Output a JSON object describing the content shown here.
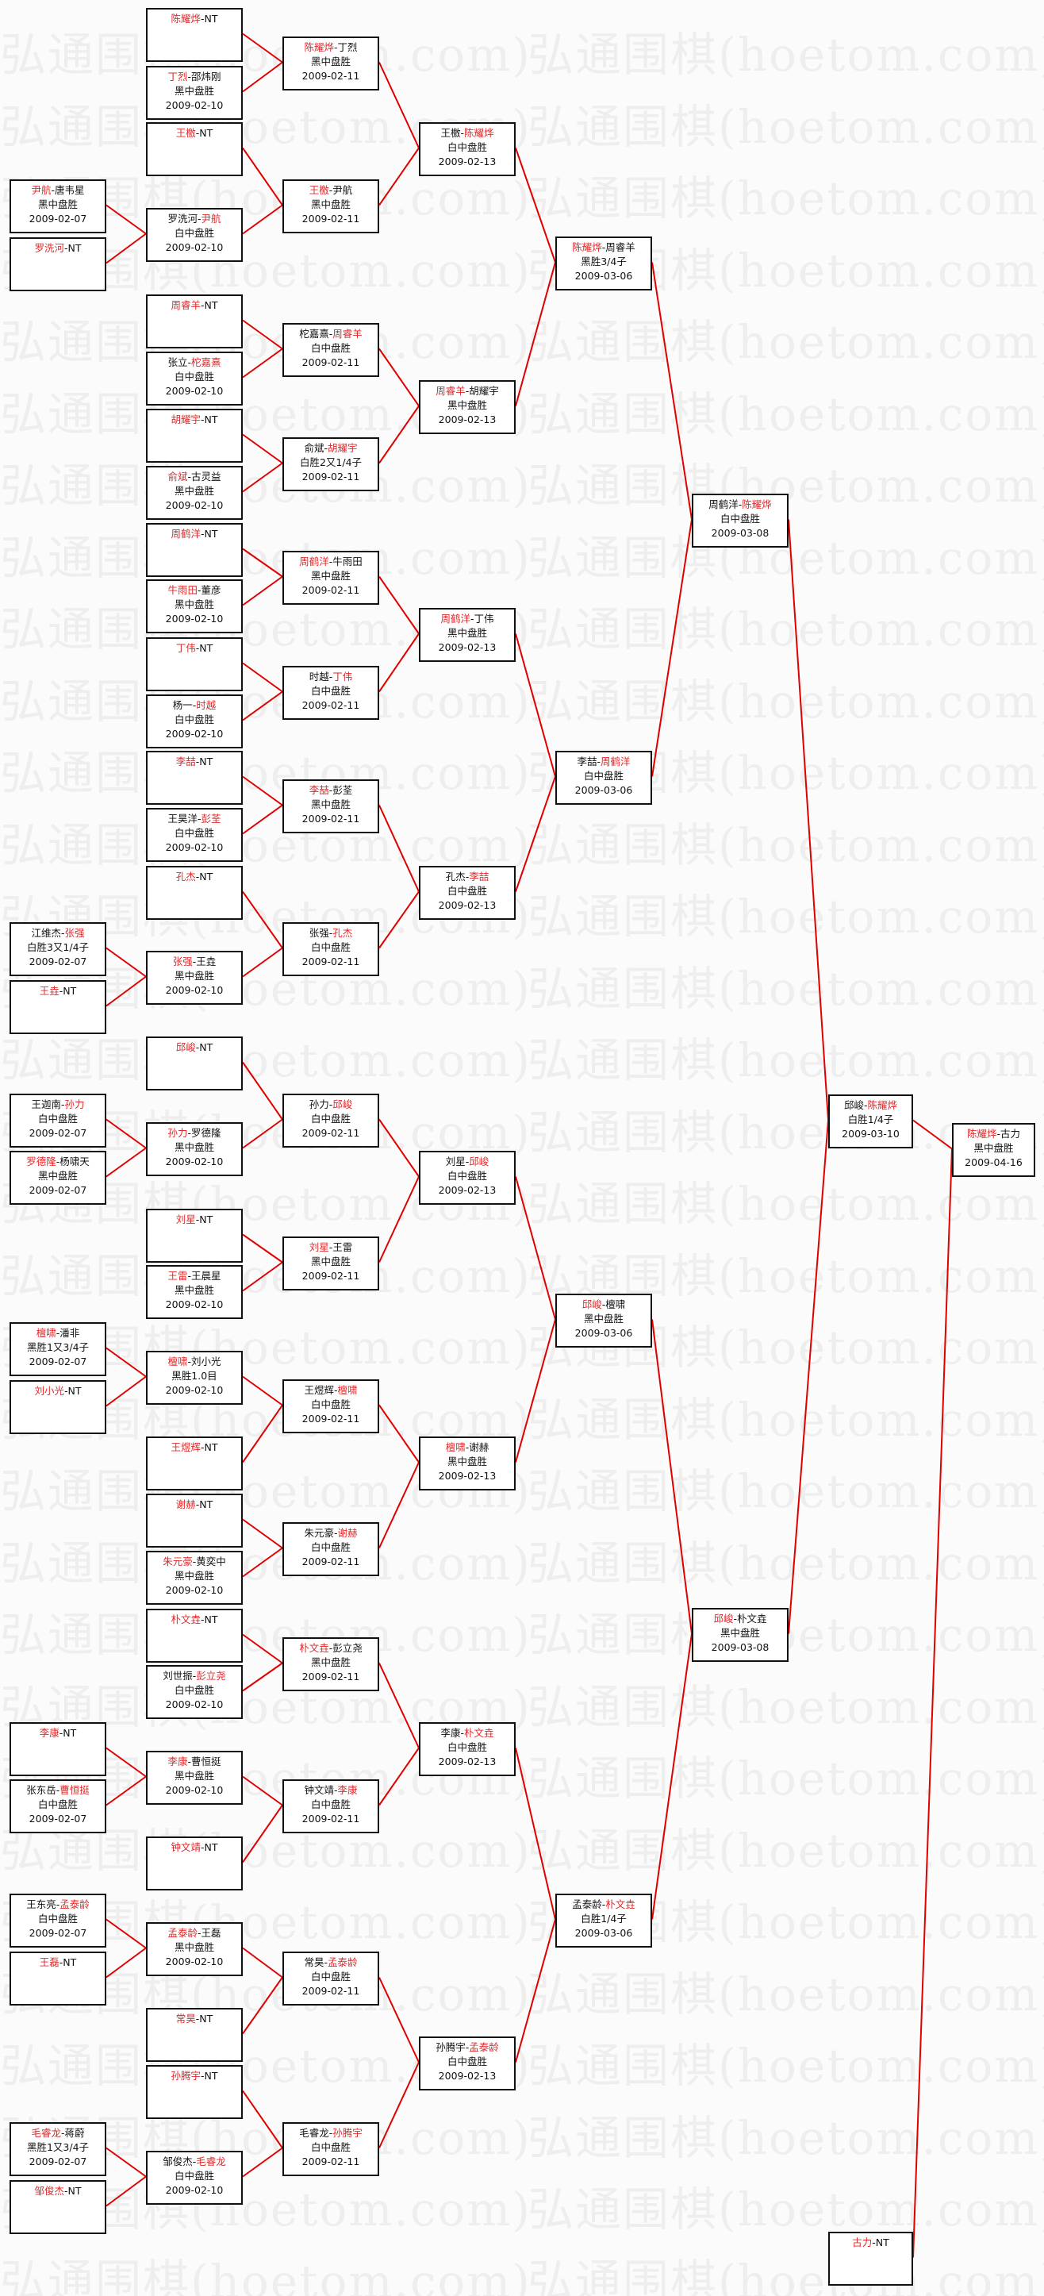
{
  "watermark": "弘通围棋(hoetom.com)",
  "colors": {
    "winner": "#e0282a",
    "connector": "#e00000",
    "border": "#111111"
  },
  "matches": [
    {
      "players": [
        "尹航",
        "唐韦星"
      ],
      "winner": 0,
      "result": "黑中盘胜",
      "date": "2009-02-07"
    },
    {
      "players": [
        "罗洗河",
        "NT"
      ],
      "winner": 0
    },
    {
      "players": [
        "江维杰",
        "张强"
      ],
      "winner": 1,
      "result": "白胜3又1/4子",
      "date": "2009-02-07"
    },
    {
      "players": [
        "王垚",
        "NT"
      ],
      "winner": 0
    },
    {
      "players": [
        "王迦南",
        "孙力"
      ],
      "winner": 1,
      "result": "白中盘胜",
      "date": "2009-02-07"
    },
    {
      "players": [
        "罗德隆",
        "杨啸天"
      ],
      "winner": 0,
      "result": "黑中盘胜",
      "date": "2009-02-07"
    },
    {
      "players": [
        "檀啸",
        "潘非"
      ],
      "winner": 0,
      "result": "黑胜1又3/4子",
      "date": "2009-02-07"
    },
    {
      "players": [
        "刘小光",
        "NT"
      ],
      "winner": 0
    },
    {
      "players": [
        "李康",
        "NT"
      ],
      "winner": 0
    },
    {
      "players": [
        "张东岳",
        "曹恒挺"
      ],
      "winner": 1,
      "result": "白中盘胜",
      "date": "2009-02-07"
    },
    {
      "players": [
        "王东亮",
        "孟泰龄"
      ],
      "winner": 1,
      "result": "白中盘胜",
      "date": "2009-02-07"
    },
    {
      "players": [
        "王磊",
        "NT"
      ],
      "winner": 0
    },
    {
      "players": [
        "毛睿龙",
        "蒋蔚"
      ],
      "winner": 0,
      "result": "黑胜1又3/4子",
      "date": "2009-02-07"
    },
    {
      "players": [
        "邹俊杰",
        "NT"
      ],
      "winner": 0
    },
    {
      "players": [
        "陈耀烨",
        "NT"
      ],
      "winner": 0
    },
    {
      "players": [
        "丁烈",
        "邵炜刚"
      ],
      "winner": 0,
      "result": "黑中盘胜",
      "date": "2009-02-10"
    },
    {
      "players": [
        "王檄",
        "NT"
      ],
      "winner": 0
    },
    {
      "players": [
        "罗洗河",
        "尹航"
      ],
      "winner": 1,
      "result": "白中盘胜",
      "date": "2009-02-10"
    },
    {
      "players": [
        "周睿羊",
        "NT"
      ],
      "winner": 0
    },
    {
      "players": [
        "张立",
        "柁嘉熹"
      ],
      "winner": 1,
      "result": "白中盘胜",
      "date": "2009-02-10"
    },
    {
      "players": [
        "胡耀宇",
        "NT"
      ],
      "winner": 0
    },
    {
      "players": [
        "俞斌",
        "古灵益"
      ],
      "winner": 0,
      "result": "黑中盘胜",
      "date": "2009-02-10"
    },
    {
      "players": [
        "周鹤洋",
        "NT"
      ],
      "winner": 0
    },
    {
      "players": [
        "牛雨田",
        "董彦"
      ],
      "winner": 0,
      "result": "黑中盘胜",
      "date": "2009-02-10"
    },
    {
      "players": [
        "丁伟",
        "NT"
      ],
      "winner": 0
    },
    {
      "players": [
        "杨一",
        "时越"
      ],
      "winner": 1,
      "result": "白中盘胜",
      "date": "2009-02-10"
    },
    {
      "players": [
        "李喆",
        "NT"
      ],
      "winner": 0
    },
    {
      "players": [
        "王昊洋",
        "彭荃"
      ],
      "winner": 1,
      "result": "白中盘胜",
      "date": "2009-02-10"
    },
    {
      "players": [
        "孔杰",
        "NT"
      ],
      "winner": 0
    },
    {
      "players": [
        "张强",
        "王垚"
      ],
      "winner": 0,
      "result": "黑中盘胜",
      "date": "2009-02-10"
    },
    {
      "players": [
        "邱峻",
        "NT"
      ],
      "winner": 0
    },
    {
      "players": [
        "孙力",
        "罗德隆"
      ],
      "winner": 0,
      "result": "黑中盘胜",
      "date": "2009-02-10"
    },
    {
      "players": [
        "刘星",
        "NT"
      ],
      "winner": 0
    },
    {
      "players": [
        "王雷",
        "王晨星"
      ],
      "winner": 0,
      "result": "黑中盘胜",
      "date": "2009-02-10"
    },
    {
      "players": [
        "檀啸",
        "刘小光"
      ],
      "winner": 0,
      "result": "黑胜1.0目",
      "date": "2009-02-10"
    },
    {
      "players": [
        "王煜辉",
        "NT"
      ],
      "winner": 0
    },
    {
      "players": [
        "谢赫",
        "NT"
      ],
      "winner": 0
    },
    {
      "players": [
        "朱元豪",
        "黄奕中"
      ],
      "winner": 0,
      "result": "黑中盘胜",
      "date": "2009-02-10"
    },
    {
      "players": [
        "朴文垚",
        "NT"
      ],
      "winner": 0
    },
    {
      "players": [
        "刘世振",
        "彭立尧"
      ],
      "winner": 1,
      "result": "白中盘胜",
      "date": "2009-02-10"
    },
    {
      "players": [
        "李康",
        "曹恒挺"
      ],
      "winner": 0,
      "result": "黑中盘胜",
      "date": "2009-02-10"
    },
    {
      "players": [
        "钟文靖",
        "NT"
      ],
      "winner": 0
    },
    {
      "players": [
        "孟泰龄",
        "王磊"
      ],
      "winner": 0,
      "result": "黑中盘胜",
      "date": "2009-02-10"
    },
    {
      "players": [
        "常昊",
        "NT"
      ],
      "winner": 0
    },
    {
      "players": [
        "孙腾宇",
        "NT"
      ],
      "winner": 0
    },
    {
      "players": [
        "邹俊杰",
        "毛睿龙"
      ],
      "winner": 1,
      "result": "白中盘胜",
      "date": "2009-02-10"
    },
    {
      "players": [
        "陈耀烨",
        "丁烈"
      ],
      "winner": 0,
      "result": "黑中盘胜",
      "date": "2009-02-11"
    },
    {
      "players": [
        "王檄",
        "尹航"
      ],
      "winner": 0,
      "result": "黑中盘胜",
      "date": "2009-02-11"
    },
    {
      "players": [
        "柁嘉熹",
        "周睿羊"
      ],
      "winner": 1,
      "result": "白中盘胜",
      "date": "2009-02-11"
    },
    {
      "players": [
        "俞斌",
        "胡耀宇"
      ],
      "winner": 1,
      "result": "白胜2又1/4子",
      "date": "2009-02-11"
    },
    {
      "players": [
        "周鹤洋",
        "牛雨田"
      ],
      "winner": 0,
      "result": "黑中盘胜",
      "date": "2009-02-11"
    },
    {
      "players": [
        "时越",
        "丁伟"
      ],
      "winner": 1,
      "result": "白中盘胜",
      "date": "2009-02-11"
    },
    {
      "players": [
        "李喆",
        "彭荃"
      ],
      "winner": 0,
      "result": "黑中盘胜",
      "date": "2009-02-11"
    },
    {
      "players": [
        "张强",
        "孔杰"
      ],
      "winner": 1,
      "result": "白中盘胜",
      "date": "2009-02-11"
    },
    {
      "players": [
        "孙力",
        "邱峻"
      ],
      "winner": 1,
      "result": "白中盘胜",
      "date": "2009-02-11"
    },
    {
      "players": [
        "刘星",
        "王雷"
      ],
      "winner": 0,
      "result": "黑中盘胜",
      "date": "2009-02-11"
    },
    {
      "players": [
        "王煜辉",
        "檀啸"
      ],
      "winner": 1,
      "result": "白中盘胜",
      "date": "2009-02-11"
    },
    {
      "players": [
        "朱元豪",
        "谢赫"
      ],
      "winner": 1,
      "result": "白中盘胜",
      "date": "2009-02-11"
    },
    {
      "players": [
        "朴文垚",
        "彭立尧"
      ],
      "winner": 0,
      "result": "黑中盘胜",
      "date": "2009-02-11"
    },
    {
      "players": [
        "钟文靖",
        "李康"
      ],
      "winner": 1,
      "result": "白中盘胜",
      "date": "2009-02-11"
    },
    {
      "players": [
        "常昊",
        "孟泰龄"
      ],
      "winner": 1,
      "result": "白中盘胜",
      "date": "2009-02-11"
    },
    {
      "players": [
        "毛睿龙",
        "孙腾宇"
      ],
      "winner": 1,
      "result": "白中盘胜",
      "date": "2009-02-11"
    },
    {
      "players": [
        "王檄",
        "陈耀烨"
      ],
      "winner": 1,
      "result": "白中盘胜",
      "date": "2009-02-13"
    },
    {
      "players": [
        "周睿羊",
        "胡耀宇"
      ],
      "winner": 0,
      "result": "黑中盘胜",
      "date": "2009-02-13"
    },
    {
      "players": [
        "周鹤洋",
        "丁伟"
      ],
      "winner": 0,
      "result": "黑中盘胜",
      "date": "2009-02-13"
    },
    {
      "players": [
        "孔杰",
        "李喆"
      ],
      "winner": 1,
      "result": "白中盘胜",
      "date": "2009-02-13"
    },
    {
      "players": [
        "刘星",
        "邱峻"
      ],
      "winner": 1,
      "result": "白中盘胜",
      "date": "2009-02-13"
    },
    {
      "players": [
        "檀啸",
        "谢赫"
      ],
      "winner": 0,
      "result": "黑中盘胜",
      "date": "2009-02-13"
    },
    {
      "players": [
        "李康",
        "朴文垚"
      ],
      "winner": 1,
      "result": "白中盘胜",
      "date": "2009-02-13"
    },
    {
      "players": [
        "孙腾宇",
        "孟泰龄"
      ],
      "winner": 1,
      "result": "白中盘胜",
      "date": "2009-02-13"
    },
    {
      "players": [
        "陈耀烨",
        "周睿羊"
      ],
      "winner": 0,
      "result": "黑胜3/4子",
      "date": "2009-03-06"
    },
    {
      "players": [
        "李喆",
        "周鹤洋"
      ],
      "winner": 1,
      "result": "白中盘胜",
      "date": "2009-03-06"
    },
    {
      "players": [
        "邱峻",
        "檀啸"
      ],
      "winner": 0,
      "result": "黑中盘胜",
      "date": "2009-03-06"
    },
    {
      "players": [
        "孟泰龄",
        "朴文垚"
      ],
      "winner": 1,
      "result": "白胜1/4子",
      "date": "2009-03-06"
    },
    {
      "players": [
        "周鹤洋",
        "陈耀烨"
      ],
      "winner": 1,
      "result": "白中盘胜",
      "date": "2009-03-08"
    },
    {
      "players": [
        "邱峻",
        "朴文垚"
      ],
      "winner": 0,
      "result": "黑中盘胜",
      "date": "2009-03-08"
    },
    {
      "players": [
        "邱峻",
        "陈耀烨"
      ],
      "winner": 1,
      "result": "白胜1/4子",
      "date": "2009-03-10"
    },
    {
      "players": [
        "古力",
        "NT"
      ],
      "winner": 0
    },
    {
      "players": [
        "陈耀烨",
        "古力"
      ],
      "winner": 0,
      "result": "黑中盘胜",
      "date": "2009-04-16"
    }
  ]
}
